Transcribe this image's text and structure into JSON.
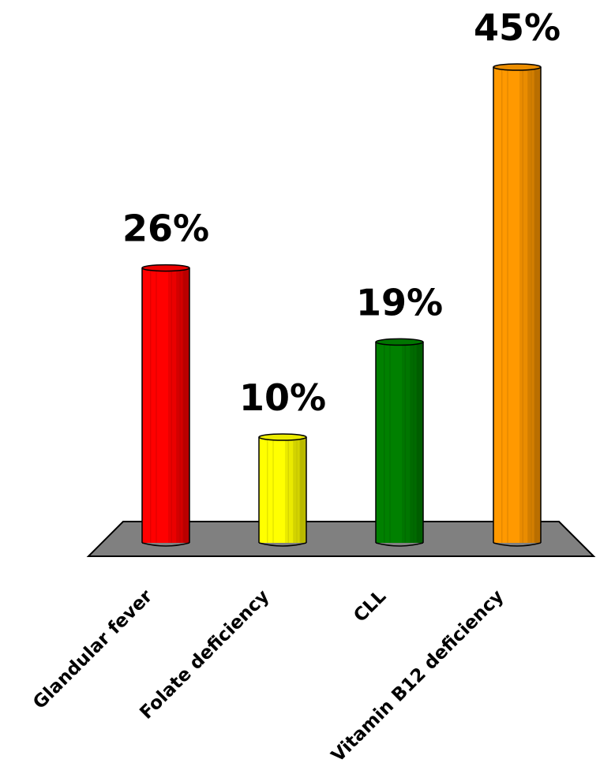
{
  "chart_data": {
    "type": "bar",
    "title": "",
    "xlabel": "",
    "ylabel": "",
    "ylim": [
      0,
      45
    ],
    "grid": false,
    "legend": "none",
    "style": "3d-cylinder",
    "categories": [
      "Glandular fever",
      "Folate deficiency",
      "CLL",
      "Vitamin B12 deficiency"
    ],
    "values": [
      26,
      10,
      19,
      45
    ],
    "value_labels": [
      "26%",
      "10%",
      "19%",
      "45%"
    ],
    "colors": [
      "#ff0000",
      "#ffff00",
      "#008000",
      "#ff9900"
    ],
    "floor_color": "#808080"
  }
}
